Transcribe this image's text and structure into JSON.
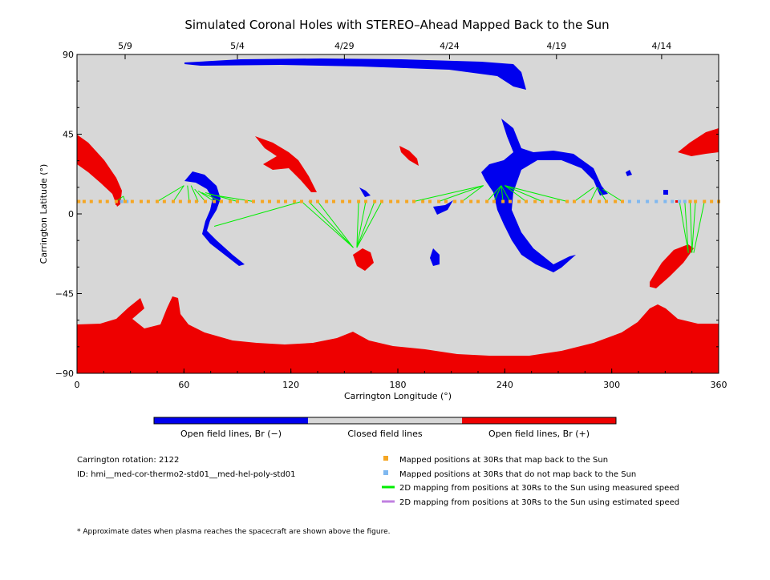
{
  "chart_data": {
    "type": "scatter",
    "title": "Simulated Coronal Holes with STEREO–Ahead Mapped Back to the Sun",
    "xlabel": "Carrington Longitude (°)",
    "ylabel": "Carrington Latitude (°)",
    "xlim": [
      0,
      360
    ],
    "ylim": [
      -90,
      90
    ],
    "x_ticks": [
      "0",
      "60",
      "120",
      "180",
      "240",
      "300",
      "360"
    ],
    "y_ticks": [
      "90",
      "45",
      "0",
      "−45",
      "−90"
    ],
    "top_date_ticks": [
      {
        "label": "5/9",
        "lon": 27
      },
      {
        "label": "5/4",
        "lon": 90
      },
      {
        "label": "4/29",
        "lon": 150
      },
      {
        "label": "4/24",
        "lon": 209
      },
      {
        "label": "4/19",
        "lon": 269
      },
      {
        "label": "4/14",
        "lon": 328
      }
    ],
    "grid": false,
    "colorbar": {
      "labels": [
        "Open field lines, Br (−)",
        "Closed field lines",
        "Open field lines, Br (+)"
      ],
      "colors": [
        "#0000ee",
        "#d7d7d7",
        "#ee0000"
      ]
    },
    "colors": {
      "closed": "#d7d7d7",
      "open_negative": "#0000ee",
      "open_positive": "#ee0000",
      "mapped": "#f5a623",
      "unmapped": "#7fb8f0",
      "measured_speed": "#00ee00",
      "estimated_speed": "#c080e0"
    },
    "mapped_points_lat": 7,
    "mapped_points_lon": [
      1,
      4,
      8,
      13,
      17,
      22,
      27,
      31,
      36,
      40,
      45,
      49,
      54,
      58,
      63,
      67,
      72,
      77,
      81,
      86,
      90,
      95,
      99,
      104,
      108,
      113,
      117,
      122,
      126,
      131,
      135,
      140,
      144,
      149,
      153,
      158,
      162,
      167,
      171,
      176,
      180,
      185,
      189,
      194,
      198,
      203,
      207,
      212,
      216,
      221,
      225,
      230,
      234,
      239,
      243,
      248,
      252,
      257,
      261,
      266,
      270,
      275,
      279,
      284,
      288,
      293,
      297,
      302,
      306,
      344,
      347,
      352,
      356,
      360
    ],
    "unmapped_points_lon": [
      25,
      28,
      310,
      315,
      320,
      325,
      330,
      334,
      338,
      341
    ],
    "mapping_lines": [
      [
        22,
        7,
        26,
        10
      ],
      [
        27,
        7,
        26,
        10
      ],
      [
        45,
        7,
        60,
        16
      ],
      [
        54,
        7,
        60,
        16
      ],
      [
        63,
        7,
        62,
        16
      ],
      [
        68,
        7,
        64,
        16
      ],
      [
        72,
        7,
        66,
        14
      ],
      [
        77,
        7,
        68,
        13
      ],
      [
        81,
        7,
        70,
        12
      ],
      [
        90,
        7,
        72,
        12
      ],
      [
        99,
        7,
        74,
        11
      ],
      [
        77,
        -7,
        126,
        7
      ],
      [
        126,
        7,
        155,
        -19
      ],
      [
        130,
        7,
        155,
        -19
      ],
      [
        135,
        7,
        155,
        -19
      ],
      [
        158,
        7,
        157,
        -19
      ],
      [
        162,
        7,
        157,
        -19
      ],
      [
        167,
        7,
        157,
        -19
      ],
      [
        171,
        7,
        157,
        -19
      ],
      [
        189,
        7,
        228,
        16
      ],
      [
        203,
        7,
        228,
        16
      ],
      [
        216,
        7,
        228,
        16
      ],
      [
        230,
        7,
        238,
        16
      ],
      [
        234,
        7,
        238,
        16
      ],
      [
        239,
        7,
        238,
        16
      ],
      [
        243,
        7,
        238,
        16
      ],
      [
        252,
        7,
        240,
        16
      ],
      [
        261,
        7,
        240,
        16
      ],
      [
        275,
        7,
        240,
        16
      ],
      [
        279,
        7,
        290,
        15
      ],
      [
        288,
        7,
        292,
        15
      ],
      [
        297,
        7,
        292,
        15
      ],
      [
        306,
        7,
        295,
        14
      ],
      [
        338,
        7,
        343,
        -22
      ],
      [
        341,
        7,
        343,
        -22
      ],
      [
        344,
        7,
        345,
        -22
      ],
      [
        347,
        7,
        345,
        -22
      ],
      [
        352,
        7,
        346,
        -22
      ]
    ]
  },
  "info": {
    "rotation": "Carrington rotation: 2122",
    "id": "ID: hmi__med-cor-thermo2-std01__med-hel-poly-std01"
  },
  "legend": {
    "mapped": "Mapped positions at 30Rs that map back to the Sun",
    "unmapped": "Mapped positions at 30Rs that do not map back to the Sun",
    "measured": "2D mapping from positions at 30Rs to the Sun using measured speed",
    "estimated": "2D mapping from positions at 30Rs to the Sun using estimated speed"
  },
  "footnote": "* Approximate dates when plasma reaches the spacecraft are shown above the figure."
}
